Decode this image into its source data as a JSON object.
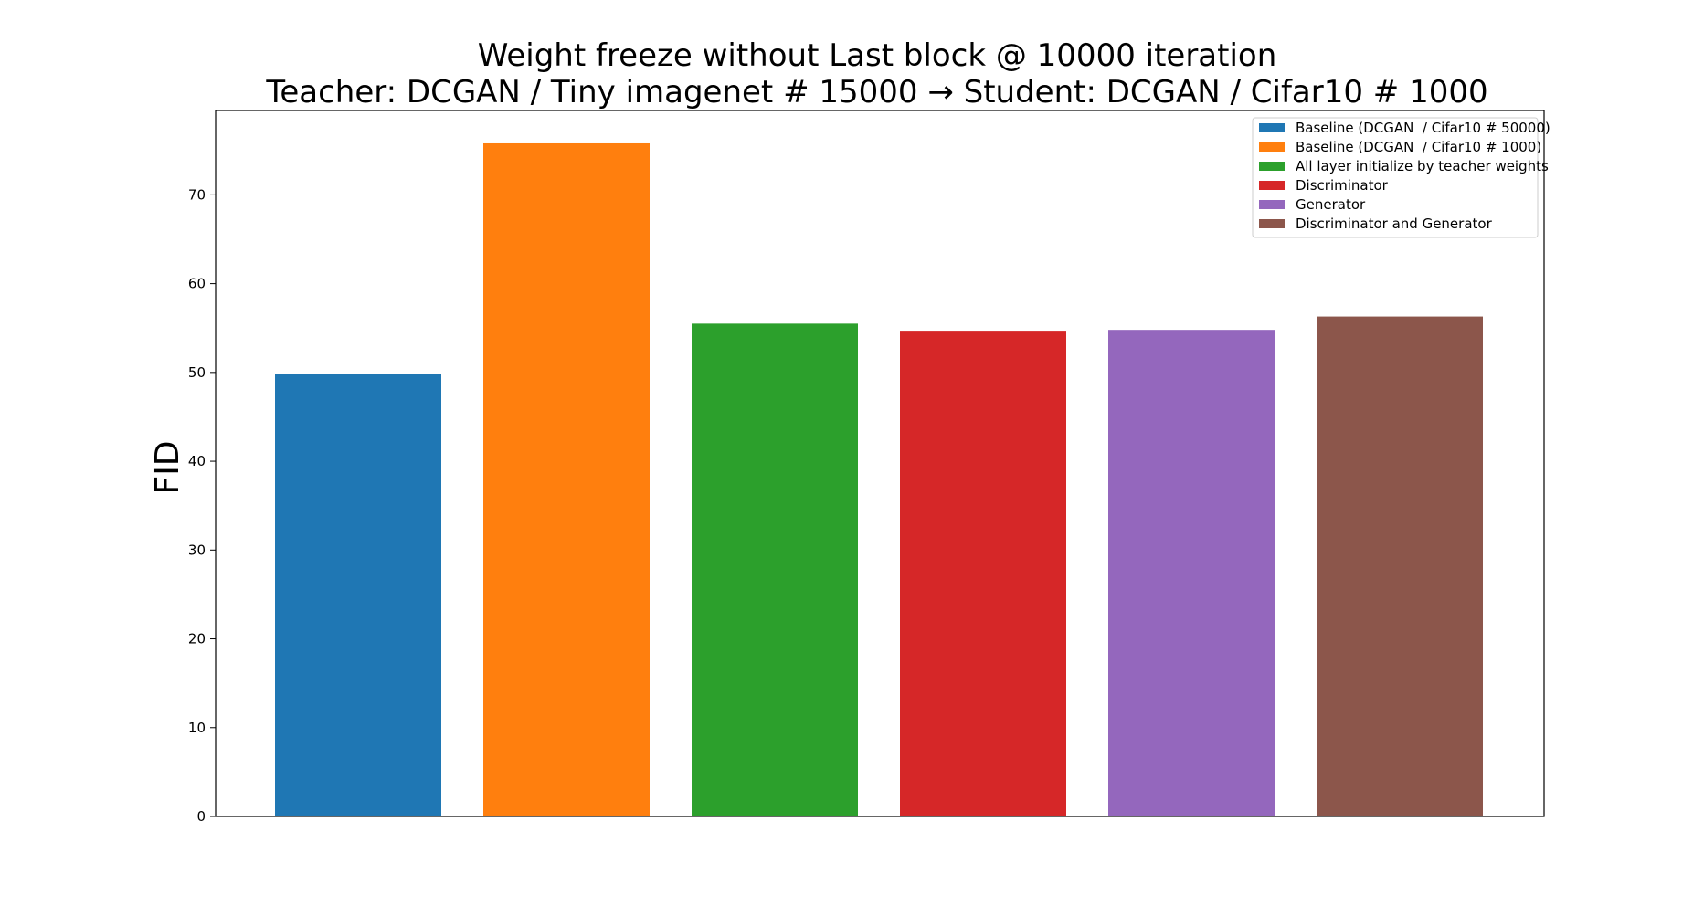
{
  "chart_data": {
    "type": "bar",
    "title": "Weight freeze without Last block @ 10000 iteration",
    "subtitle": "Teacher: DCGAN / Tiny imagenet # 15000 → Student: DCGAN / Cifar10 # 1000",
    "ylabel": "FID",
    "xlabel": "",
    "ylim": [
      0,
      79.5
    ],
    "yticks": [
      0,
      10,
      20,
      30,
      40,
      50,
      60,
      70
    ],
    "grid": false,
    "legend_position": "top-right",
    "series": [
      {
        "name": "Baseline (DCGAN  / Cifar10 # 50000)",
        "value": 49.8,
        "color": "#1f77b4"
      },
      {
        "name": "Baseline (DCGAN  / Cifar10 # 1000)",
        "value": 75.8,
        "color": "#ff7f0e"
      },
      {
        "name": "All layer initialize by teacher weights",
        "value": 55.5,
        "color": "#2ca02c"
      },
      {
        "name": "Discriminator",
        "value": 54.6,
        "color": "#d62728"
      },
      {
        "name": "Generator",
        "value": 54.8,
        "color": "#9467bd"
      },
      {
        "name": "Discriminator and Generator",
        "value": 56.3,
        "color": "#8c564b"
      }
    ]
  }
}
